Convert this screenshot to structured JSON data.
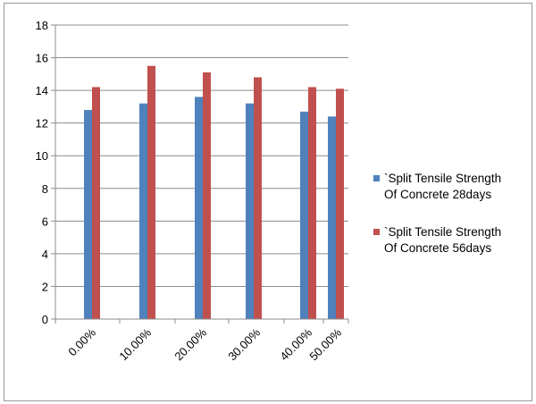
{
  "chart_data": {
    "type": "bar",
    "categories": [
      "0.00%",
      "10.00%",
      "20.00%",
      "30.00%",
      "40.00%",
      "50.00%"
    ],
    "series": [
      {
        "name": "`Split Tensile Strength Of Concrete 28days",
        "legend_lines": [
          "`Split Tensile Strength",
          "Of Concrete 28days"
        ],
        "color": "#4f81bd",
        "values": [
          12.8,
          13.2,
          13.6,
          13.2,
          12.7,
          12.4
        ]
      },
      {
        "name": "`Split Tensile Strength Of Concrete 56days",
        "legend_lines": [
          "`Split Tensile Strength",
          "Of Concrete 56days"
        ],
        "color": "#c0504d",
        "values": [
          14.2,
          15.5,
          15.1,
          14.8,
          14.2,
          14.1
        ]
      }
    ],
    "y_ticks": [
      "0",
      "2",
      "4",
      "6",
      "8",
      "10",
      "12",
      "14",
      "16",
      "18"
    ],
    "ylim": [
      0,
      18
    ],
    "title": "",
    "xlabel": "",
    "ylabel": "",
    "grid": true,
    "legend_position": "right"
  }
}
